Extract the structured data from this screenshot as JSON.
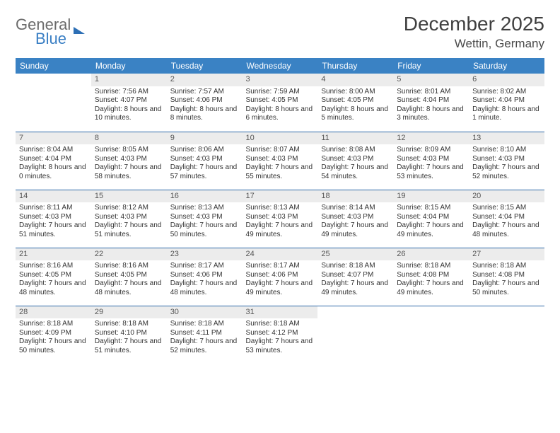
{
  "brand": {
    "line1": "General",
    "line2": "Blue"
  },
  "title": "December 2025",
  "location": "Wettin, Germany",
  "colors": {
    "header_bg": "#3a82c4",
    "header_fg": "#ffffff",
    "daynum_bg": "#ececec",
    "row_border": "#2f6aa8",
    "brand_gray": "#6b6b6b",
    "brand_blue": "#3a7fc4"
  },
  "weekdays": [
    "Sunday",
    "Monday",
    "Tuesday",
    "Wednesday",
    "Thursday",
    "Friday",
    "Saturday"
  ],
  "weeks": [
    [
      {
        "n": "",
        "sr": "",
        "ss": "",
        "dl": ""
      },
      {
        "n": "1",
        "sr": "Sunrise: 7:56 AM",
        "ss": "Sunset: 4:07 PM",
        "dl": "Daylight: 8 hours and 10 minutes."
      },
      {
        "n": "2",
        "sr": "Sunrise: 7:57 AM",
        "ss": "Sunset: 4:06 PM",
        "dl": "Daylight: 8 hours and 8 minutes."
      },
      {
        "n": "3",
        "sr": "Sunrise: 7:59 AM",
        "ss": "Sunset: 4:05 PM",
        "dl": "Daylight: 8 hours and 6 minutes."
      },
      {
        "n": "4",
        "sr": "Sunrise: 8:00 AM",
        "ss": "Sunset: 4:05 PM",
        "dl": "Daylight: 8 hours and 5 minutes."
      },
      {
        "n": "5",
        "sr": "Sunrise: 8:01 AM",
        "ss": "Sunset: 4:04 PM",
        "dl": "Daylight: 8 hours and 3 minutes."
      },
      {
        "n": "6",
        "sr": "Sunrise: 8:02 AM",
        "ss": "Sunset: 4:04 PM",
        "dl": "Daylight: 8 hours and 1 minute."
      }
    ],
    [
      {
        "n": "7",
        "sr": "Sunrise: 8:04 AM",
        "ss": "Sunset: 4:04 PM",
        "dl": "Daylight: 8 hours and 0 minutes."
      },
      {
        "n": "8",
        "sr": "Sunrise: 8:05 AM",
        "ss": "Sunset: 4:03 PM",
        "dl": "Daylight: 7 hours and 58 minutes."
      },
      {
        "n": "9",
        "sr": "Sunrise: 8:06 AM",
        "ss": "Sunset: 4:03 PM",
        "dl": "Daylight: 7 hours and 57 minutes."
      },
      {
        "n": "10",
        "sr": "Sunrise: 8:07 AM",
        "ss": "Sunset: 4:03 PM",
        "dl": "Daylight: 7 hours and 55 minutes."
      },
      {
        "n": "11",
        "sr": "Sunrise: 8:08 AM",
        "ss": "Sunset: 4:03 PM",
        "dl": "Daylight: 7 hours and 54 minutes."
      },
      {
        "n": "12",
        "sr": "Sunrise: 8:09 AM",
        "ss": "Sunset: 4:03 PM",
        "dl": "Daylight: 7 hours and 53 minutes."
      },
      {
        "n": "13",
        "sr": "Sunrise: 8:10 AM",
        "ss": "Sunset: 4:03 PM",
        "dl": "Daylight: 7 hours and 52 minutes."
      }
    ],
    [
      {
        "n": "14",
        "sr": "Sunrise: 8:11 AM",
        "ss": "Sunset: 4:03 PM",
        "dl": "Daylight: 7 hours and 51 minutes."
      },
      {
        "n": "15",
        "sr": "Sunrise: 8:12 AM",
        "ss": "Sunset: 4:03 PM",
        "dl": "Daylight: 7 hours and 51 minutes."
      },
      {
        "n": "16",
        "sr": "Sunrise: 8:13 AM",
        "ss": "Sunset: 4:03 PM",
        "dl": "Daylight: 7 hours and 50 minutes."
      },
      {
        "n": "17",
        "sr": "Sunrise: 8:13 AM",
        "ss": "Sunset: 4:03 PM",
        "dl": "Daylight: 7 hours and 49 minutes."
      },
      {
        "n": "18",
        "sr": "Sunrise: 8:14 AM",
        "ss": "Sunset: 4:03 PM",
        "dl": "Daylight: 7 hours and 49 minutes."
      },
      {
        "n": "19",
        "sr": "Sunrise: 8:15 AM",
        "ss": "Sunset: 4:04 PM",
        "dl": "Daylight: 7 hours and 49 minutes."
      },
      {
        "n": "20",
        "sr": "Sunrise: 8:15 AM",
        "ss": "Sunset: 4:04 PM",
        "dl": "Daylight: 7 hours and 48 minutes."
      }
    ],
    [
      {
        "n": "21",
        "sr": "Sunrise: 8:16 AM",
        "ss": "Sunset: 4:05 PM",
        "dl": "Daylight: 7 hours and 48 minutes."
      },
      {
        "n": "22",
        "sr": "Sunrise: 8:16 AM",
        "ss": "Sunset: 4:05 PM",
        "dl": "Daylight: 7 hours and 48 minutes."
      },
      {
        "n": "23",
        "sr": "Sunrise: 8:17 AM",
        "ss": "Sunset: 4:06 PM",
        "dl": "Daylight: 7 hours and 48 minutes."
      },
      {
        "n": "24",
        "sr": "Sunrise: 8:17 AM",
        "ss": "Sunset: 4:06 PM",
        "dl": "Daylight: 7 hours and 49 minutes."
      },
      {
        "n": "25",
        "sr": "Sunrise: 8:18 AM",
        "ss": "Sunset: 4:07 PM",
        "dl": "Daylight: 7 hours and 49 minutes."
      },
      {
        "n": "26",
        "sr": "Sunrise: 8:18 AM",
        "ss": "Sunset: 4:08 PM",
        "dl": "Daylight: 7 hours and 49 minutes."
      },
      {
        "n": "27",
        "sr": "Sunrise: 8:18 AM",
        "ss": "Sunset: 4:08 PM",
        "dl": "Daylight: 7 hours and 50 minutes."
      }
    ],
    [
      {
        "n": "28",
        "sr": "Sunrise: 8:18 AM",
        "ss": "Sunset: 4:09 PM",
        "dl": "Daylight: 7 hours and 50 minutes."
      },
      {
        "n": "29",
        "sr": "Sunrise: 8:18 AM",
        "ss": "Sunset: 4:10 PM",
        "dl": "Daylight: 7 hours and 51 minutes."
      },
      {
        "n": "30",
        "sr": "Sunrise: 8:18 AM",
        "ss": "Sunset: 4:11 PM",
        "dl": "Daylight: 7 hours and 52 minutes."
      },
      {
        "n": "31",
        "sr": "Sunrise: 8:18 AM",
        "ss": "Sunset: 4:12 PM",
        "dl": "Daylight: 7 hours and 53 minutes."
      },
      {
        "n": "",
        "sr": "",
        "ss": "",
        "dl": ""
      },
      {
        "n": "",
        "sr": "",
        "ss": "",
        "dl": ""
      },
      {
        "n": "",
        "sr": "",
        "ss": "",
        "dl": ""
      }
    ]
  ]
}
